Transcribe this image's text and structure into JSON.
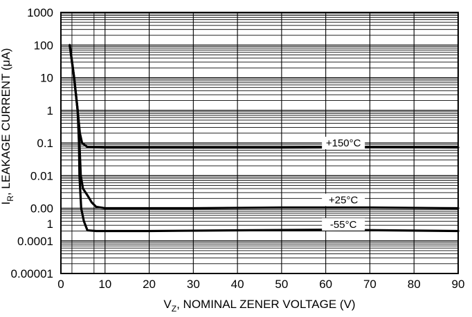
{
  "chart_data": {
    "type": "line",
    "xlabel_main": "V",
    "xlabel_sub": "Z",
    "xlabel_rest": ", NOMINAL ZENER VOLTAGE (V)",
    "ylabel_main": "I",
    "ylabel_sub": "R",
    "ylabel_rest": ", LEAKAGE CURRENT (μA)",
    "xlim": [
      0,
      90
    ],
    "ylim_log10": [
      -5,
      3
    ],
    "y_scale": "log",
    "grid": true,
    "x_ticks": [
      {
        "value": 0,
        "label": "0"
      },
      {
        "value": 10,
        "label": "10"
      },
      {
        "value": 20,
        "label": "20"
      },
      {
        "value": 30,
        "label": "30"
      },
      {
        "value": 40,
        "label": "40"
      },
      {
        "value": 50,
        "label": "50"
      },
      {
        "value": 60,
        "label": "60"
      },
      {
        "value": 70,
        "label": "70"
      },
      {
        "value": 80,
        "label": "80"
      },
      {
        "value": 90,
        "label": "90"
      }
    ],
    "y_ticks": [
      {
        "log10": 3,
        "label": "1000"
      },
      {
        "log10": 2,
        "label": "100"
      },
      {
        "log10": 1,
        "label": "10"
      },
      {
        "log10": 0,
        "label": "1"
      },
      {
        "log10": -1,
        "label": "0.1"
      },
      {
        "log10": -2,
        "label": "0.01"
      },
      {
        "log10": -3,
        "label": "0.00"
      },
      {
        "log10": -3.48,
        "label": "1"
      },
      {
        "log10": -4,
        "label": "0.0001"
      },
      {
        "log10": -5,
        "label": "0.00001"
      }
    ],
    "series": [
      {
        "name": "+150°C",
        "points": [
          [
            2,
            100
          ],
          [
            3,
            10
          ],
          [
            3.8,
            1
          ],
          [
            4.3,
            0.2
          ],
          [
            4.8,
            0.1
          ],
          [
            6,
            0.075
          ],
          [
            10,
            0.072
          ],
          [
            30,
            0.072
          ],
          [
            50,
            0.072
          ],
          [
            70,
            0.074
          ],
          [
            90,
            0.073
          ]
        ]
      },
      {
        "name": "+25°C",
        "points": [
          [
            2,
            100
          ],
          [
            3,
            10
          ],
          [
            3.8,
            1
          ],
          [
            4.2,
            0.1
          ],
          [
            4.5,
            0.01
          ],
          [
            5,
            0.004
          ],
          [
            6,
            0.0025
          ],
          [
            7,
            0.0015
          ],
          [
            8,
            0.0011
          ],
          [
            10,
            0.001
          ],
          [
            30,
            0.001
          ],
          [
            50,
            0.00105
          ],
          [
            70,
            0.00105
          ],
          [
            90,
            0.001
          ]
        ]
      },
      {
        "name": "-55°C",
        "points": [
          [
            2,
            100
          ],
          [
            3,
            10
          ],
          [
            3.8,
            1
          ],
          [
            4.1,
            0.1
          ],
          [
            4.2,
            0.01
          ],
          [
            4.6,
            0.001
          ],
          [
            5.2,
            0.0004
          ],
          [
            6,
            0.00021
          ],
          [
            8,
            0.0002
          ],
          [
            15,
            0.0002
          ],
          [
            20,
            0.0002
          ],
          [
            40,
            0.00021
          ],
          [
            60,
            0.00022
          ],
          [
            90,
            0.0002
          ]
        ]
      }
    ],
    "series_labels": [
      {
        "series": 0,
        "x": 64,
        "value": 0.1
      },
      {
        "series": 1,
        "x": 64,
        "value": 0.0018
      },
      {
        "series": 2,
        "x": 64,
        "value": 0.00032
      }
    ]
  }
}
